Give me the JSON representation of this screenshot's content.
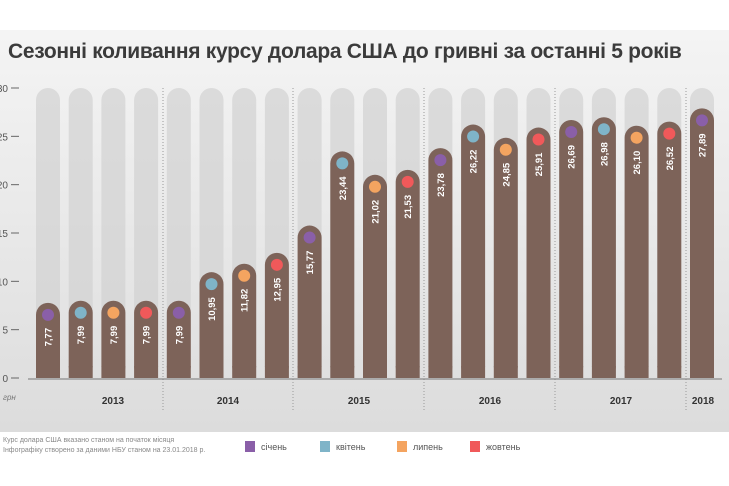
{
  "chart_data": {
    "type": "bar",
    "title": "Сезонні коливання курсу долара США до гривні за останні 5 років",
    "ylabel": "грн",
    "ylim": [
      0,
      30
    ],
    "yticks": [
      "0",
      "5",
      "10",
      "15",
      "20",
      "25",
      "30"
    ],
    "years": [
      "2013",
      "2014",
      "2015",
      "2016",
      "2017",
      "2018"
    ],
    "categories": [
      "січень 2013",
      "квітень 2013",
      "липень 2013",
      "жовтень 2013",
      "січень 2014",
      "квітень 2014",
      "липень 2014",
      "жовтень 2014",
      "січень 2015",
      "квітень 2015",
      "липень 2015",
      "жовтень 2015",
      "січень 2016",
      "квітень 2016",
      "липень 2016",
      "жовтень 2016",
      "січень 2017",
      "квітень 2017",
      "липень 2017",
      "жовтень 2017",
      "січень 2018"
    ],
    "values": [
      7.77,
      7.99,
      7.99,
      7.99,
      7.99,
      10.95,
      11.82,
      12.95,
      15.77,
      23.44,
      21.02,
      21.53,
      23.78,
      26.22,
      24.85,
      25.91,
      26.69,
      26.98,
      26.1,
      26.52,
      27.89
    ],
    "labels": [
      "7,77",
      "7,99",
      "7,99",
      "7,99",
      "7,99",
      "10,95",
      "11,82",
      "12,95",
      "15,77",
      "23,44",
      "21,02",
      "21,53",
      "23,78",
      "26,22",
      "24,85",
      "25,91",
      "26,69",
      "26,98",
      "26,10",
      "26,52",
      "27,89"
    ],
    "legend": [
      {
        "name": "січень",
        "color": "#8a5fa8"
      },
      {
        "name": "квітень",
        "color": "#7fb4c8"
      },
      {
        "name": "липень",
        "color": "#f4a460"
      },
      {
        "name": "жовтень",
        "color": "#f0595a"
      }
    ],
    "legend_position": "bottom"
  },
  "footnote": [
    "Курс долара США вказано станом на початок місяця",
    "Інфографіку створено за даними НБУ станом на 23.01.2018 р."
  ],
  "colors": {
    "bar": "#7d6359",
    "track": "#d2d2d2"
  }
}
